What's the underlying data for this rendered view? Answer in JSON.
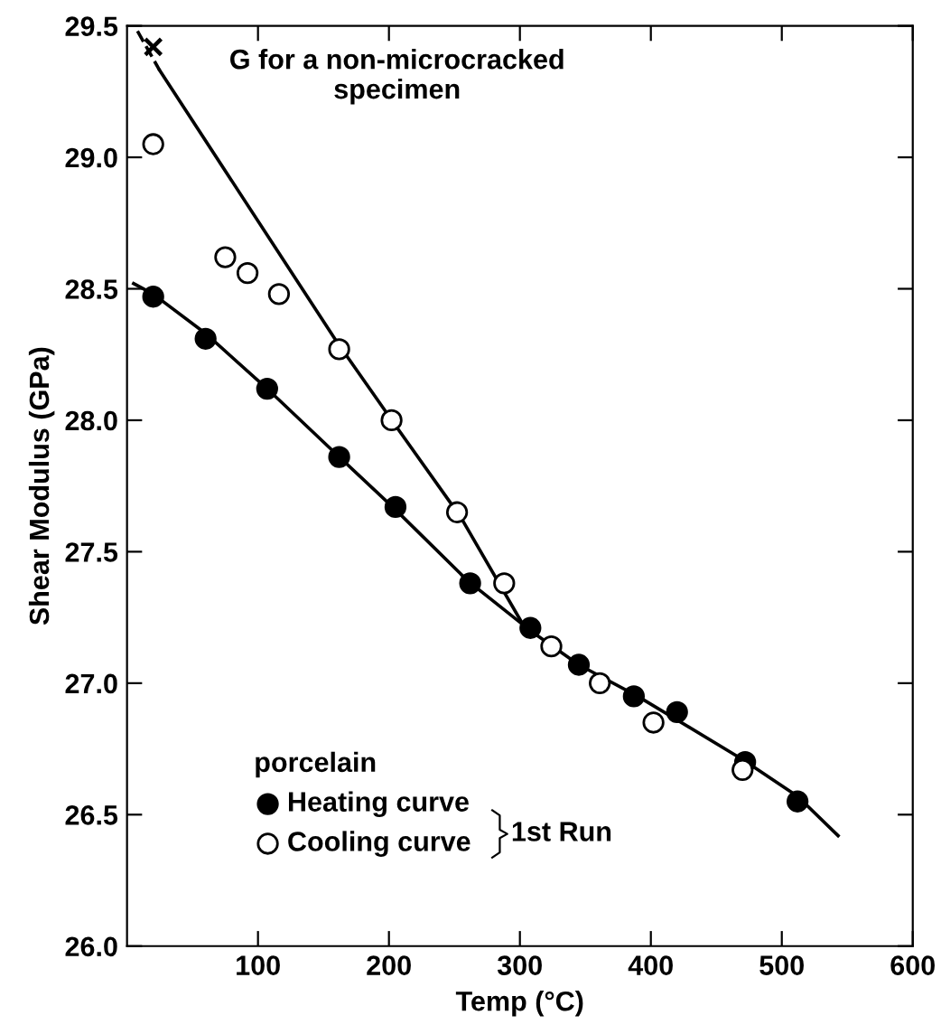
{
  "chart_data": {
    "type": "scatter",
    "xlabel": "Temp (°C)",
    "ylabel": "Shear Modulus (GPa)",
    "xlim": [
      0,
      600
    ],
    "xticks": [
      100,
      200,
      300,
      400,
      500,
      600
    ],
    "ylim": [
      26.0,
      29.5
    ],
    "yticks": [
      {
        "value": 26.0,
        "label": "26.0"
      },
      {
        "value": 26.5,
        "label": "26.5"
      },
      {
        "value": 27.0,
        "label": "27.0"
      },
      {
        "value": 27.5,
        "label": "27.5"
      },
      {
        "value": 28.0,
        "label": "28.0"
      },
      {
        "value": 28.5,
        "label": "28.5"
      },
      {
        "value": 29.0,
        "label": "29.0"
      },
      {
        "value": 29.5,
        "label": "29.5"
      }
    ],
    "grid": false,
    "legend": "bottom left",
    "legend_title": "porcelain",
    "series": [
      {
        "name": "Heating curve",
        "marker": "circle",
        "color": "#000000",
        "x": [
          20,
          60,
          107,
          162,
          205,
          262,
          308,
          345,
          387,
          420,
          472,
          512
        ],
        "values": [
          28.47,
          28.31,
          28.12,
          27.86,
          27.67,
          27.38,
          27.21,
          27.07,
          26.95,
          26.89,
          26.7,
          26.55
        ]
      },
      {
        "name": "Cooling curve",
        "marker": "circle",
        "color": "#ffffff",
        "x": [
          20,
          75,
          92,
          116,
          162,
          202,
          252,
          288,
          324,
          361,
          402,
          470
        ],
        "values": [
          29.05,
          28.62,
          28.56,
          28.48,
          28.27,
          28.0,
          27.65,
          27.38,
          27.14,
          27.0,
          26.85,
          26.67
        ]
      },
      {
        "marker": "cross",
        "color": "#000000",
        "x": [
          20
        ],
        "values": [
          29.42
        ]
      },
      {
        "type": "line",
        "line_style": "solid",
        "color": "#000000",
        "x": [
          5,
          20,
          60,
          107,
          160,
          205,
          260,
          308,
          345,
          390,
          470,
          512,
          543
        ],
        "values": [
          28.52,
          28.48,
          28.33,
          28.12,
          27.87,
          27.66,
          27.39,
          27.2,
          27.07,
          26.95,
          26.71,
          26.57,
          26.42
        ]
      },
      {
        "type": "line",
        "line_style": "dashed",
        "color": "#000000",
        "x": [
          8,
          25
        ],
        "values": [
          29.48,
          29.33
        ]
      },
      {
        "type": "line",
        "line_style": "solid",
        "color": "#000000",
        "x": [
          25,
          160,
          205,
          255,
          305
        ],
        "values": [
          29.33,
          28.3,
          27.98,
          27.63,
          27.2
        ]
      }
    ],
    "annotations": [
      "G for a non-microcracked\nspecimen",
      "1st Run"
    ]
  }
}
